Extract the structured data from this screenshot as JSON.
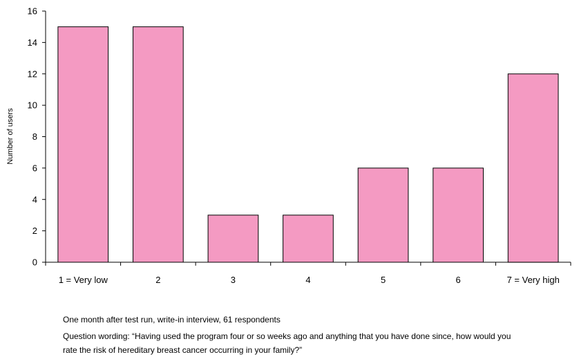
{
  "chart_data": {
    "type": "bar",
    "categories": [
      "1 = Very low",
      "2",
      "3",
      "4",
      "5",
      "6",
      "7 = Very high"
    ],
    "values": [
      15,
      15,
      3,
      3,
      6,
      6,
      12
    ],
    "xlabel": "",
    "ylabel": "Number of users",
    "ylim": [
      0,
      16
    ],
    "yticks": [
      0,
      2,
      4,
      6,
      8,
      10,
      12,
      14,
      16
    ],
    "grid": false,
    "bar_color": "#f49ac2",
    "bar_edge_color": "#000000"
  },
  "notes": {
    "survey": "One month after test run, write-in interview, 61 respondents",
    "question_line1": "Question wording: “Having used the program four or so weeks ago and anything that you have done since, how would you",
    "question_line2": "rate the risk of hereditary breast cancer occurring in your family?”"
  }
}
